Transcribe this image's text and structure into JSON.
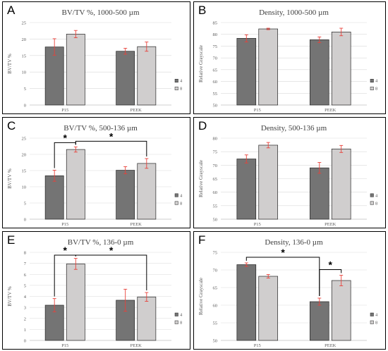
{
  "colors": {
    "series_4": "#747474",
    "series_8": "#d0cece",
    "error": "#e8413a",
    "axis_text": "#595959",
    "grid": "#d9d9d9"
  },
  "chart_data": [
    {
      "letter": "A",
      "type": "bar",
      "title": "BV/TV %, 1000-500 µm",
      "ylabel": "BV/TV %",
      "categories": [
        "P15",
        "PEEK"
      ],
      "ylim": [
        0,
        25
      ],
      "yticks": [
        0,
        5,
        10,
        15,
        20,
        25
      ],
      "grid": true,
      "legend": "right",
      "series": [
        {
          "name": "4",
          "values": [
            17.6,
            16.3
          ],
          "errors": [
            2.5,
            0.9
          ]
        },
        {
          "name": "8",
          "values": [
            21.5,
            17.7
          ],
          "errors": [
            1.1,
            1.4
          ]
        }
      ],
      "significance": []
    },
    {
      "letter": "B",
      "type": "bar",
      "title": "Density, 1000-500 µm",
      "ylabel": "Relative Grayscale",
      "categories": [
        "P15",
        "PEEK"
      ],
      "ylim": [
        50,
        85
      ],
      "yticks": [
        50,
        55,
        60,
        65,
        70,
        75,
        80,
        85
      ],
      "grid": true,
      "legend": "right",
      "series": [
        {
          "name": "4",
          "values": [
            78.3,
            77.7
          ],
          "errors": [
            1.5,
            1.2
          ]
        },
        {
          "name": "8",
          "values": [
            82.3,
            81.0
          ],
          "errors": [
            0.3,
            1.6
          ]
        }
      ],
      "significance": []
    },
    {
      "letter": "C",
      "type": "bar",
      "title": "BV/TV %, 500-136 µm",
      "ylabel": "BV/TV %",
      "categories": [
        "P15",
        "PEEK"
      ],
      "ylim": [
        0,
        25
      ],
      "yticks": [
        0,
        5,
        10,
        15,
        20,
        25
      ],
      "grid": true,
      "legend": "right",
      "series": [
        {
          "name": "4",
          "values": [
            13.4,
            15.1
          ],
          "errors": [
            1.7,
            1.1
          ]
        },
        {
          "name": "8",
          "values": [
            21.5,
            17.2
          ],
          "errors": [
            0.8,
            1.5
          ]
        }
      ],
      "significance": [
        {
          "from": [
            0,
            0
          ],
          "to": [
            0,
            1
          ],
          "label": "*"
        },
        {
          "from": [
            0,
            1
          ],
          "to": [
            1,
            1
          ],
          "label": "*"
        }
      ]
    },
    {
      "letter": "D",
      "type": "bar",
      "title": "Density, 500-136 µm",
      "ylabel": "Relative Grayscale",
      "categories": [
        "P15",
        "PEEK"
      ],
      "ylim": [
        50,
        80
      ],
      "yticks": [
        50,
        55,
        60,
        65,
        70,
        75,
        80
      ],
      "grid": true,
      "legend": "right",
      "series": [
        {
          "name": "4",
          "values": [
            72.3,
            69.0
          ],
          "errors": [
            1.5,
            2.0
          ]
        },
        {
          "name": "8",
          "values": [
            77.4,
            76.0
          ],
          "errors": [
            1.0,
            1.3
          ]
        }
      ],
      "significance": []
    },
    {
      "letter": "E",
      "type": "bar",
      "title": "BV/TV %, 136-0 µm",
      "ylabel": "BV/TV %",
      "categories": [
        "P15",
        "PEEK"
      ],
      "ylim": [
        0,
        8
      ],
      "yticks": [
        0,
        1,
        2,
        3,
        4,
        5,
        6,
        7,
        8
      ],
      "grid": true,
      "legend": "right",
      "series": [
        {
          "name": "4",
          "values": [
            3.2,
            3.65
          ],
          "errors": [
            0.6,
            1.0
          ]
        },
        {
          "name": "8",
          "values": [
            6.95,
            3.95
          ],
          "errors": [
            0.5,
            0.4
          ]
        }
      ],
      "significance": [
        {
          "from": [
            0,
            0
          ],
          "to": [
            0,
            1
          ],
          "label": "*"
        },
        {
          "from": [
            0,
            1
          ],
          "to": [
            1,
            1
          ],
          "label": "*"
        }
      ]
    },
    {
      "letter": "F",
      "type": "bar",
      "title": "Density, 136-0 µm",
      "ylabel": "Relative Grayscale",
      "categories": [
        "P15",
        "PEEK"
      ],
      "ylim": [
        50,
        75
      ],
      "yticks": [
        50,
        55,
        60,
        65,
        70,
        75
      ],
      "grid": true,
      "legend": "right",
      "series": [
        {
          "name": "4",
          "values": [
            71.5,
            61.0
          ],
          "errors": [
            0.5,
            1.0
          ]
        },
        {
          "name": "8",
          "values": [
            68.2,
            67.0
          ],
          "errors": [
            0.5,
            1.5
          ]
        }
      ],
      "significance": [
        {
          "from": [
            0,
            0
          ],
          "to": [
            1,
            0
          ],
          "label": "*"
        },
        {
          "from": [
            1,
            0
          ],
          "to": [
            1,
            1
          ],
          "label": "*"
        }
      ]
    }
  ]
}
